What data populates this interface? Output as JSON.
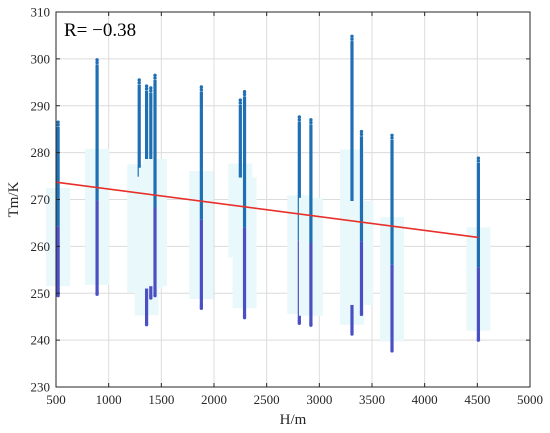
{
  "chart_data": {
    "type": "scatter",
    "xlabel": "H/m",
    "ylabel": "Tm/K",
    "xlim": [
      500,
      5000
    ],
    "ylim": [
      230,
      310
    ],
    "xticks": [
      "500",
      "1000",
      "1500",
      "2000",
      "2500",
      "3000",
      "3500",
      "4000",
      "4500",
      "5000"
    ],
    "yticks": [
      "230",
      "240",
      "250",
      "260",
      "270",
      "280",
      "290",
      "300",
      "310"
    ],
    "grid": true,
    "annotation": "R= −0.38",
    "point_color": "#1f6fb4",
    "point_color_low": "#4a4fc4",
    "fit_color": "#e8302a",
    "stations": [
      {
        "x": 520,
        "min": 249.5,
        "max": 286.5
      },
      {
        "x": 890,
        "min": 249.8,
        "max": 299.8
      },
      {
        "x": 1290,
        "min": 248.2,
        "max": 295.5
      },
      {
        "x": 1360,
        "min": 243.3,
        "max": 294.2
      },
      {
        "x": 1400,
        "min": 249.0,
        "max": 293.8
      },
      {
        "x": 1440,
        "min": 249.5,
        "max": 296.5
      },
      {
        "x": 1880,
        "min": 246.8,
        "max": 294.0
      },
      {
        "x": 2250,
        "min": 255.6,
        "max": 291.2
      },
      {
        "x": 2290,
        "min": 244.8,
        "max": 293.0
      },
      {
        "x": 2810,
        "min": 243.6,
        "max": 287.6
      },
      {
        "x": 2920,
        "min": 243.2,
        "max": 287.0
      },
      {
        "x": 3310,
        "min": 241.3,
        "max": 304.8
      },
      {
        "x": 3400,
        "min": 245.5,
        "max": 284.5
      },
      {
        "x": 3690,
        "min": 237.7,
        "max": 283.7
      },
      {
        "x": 4510,
        "min": 240.0,
        "max": 278.8
      }
    ],
    "fit_line": {
      "x": [
        500,
        4510
      ],
      "y": [
        273.7,
        261.9
      ]
    }
  }
}
